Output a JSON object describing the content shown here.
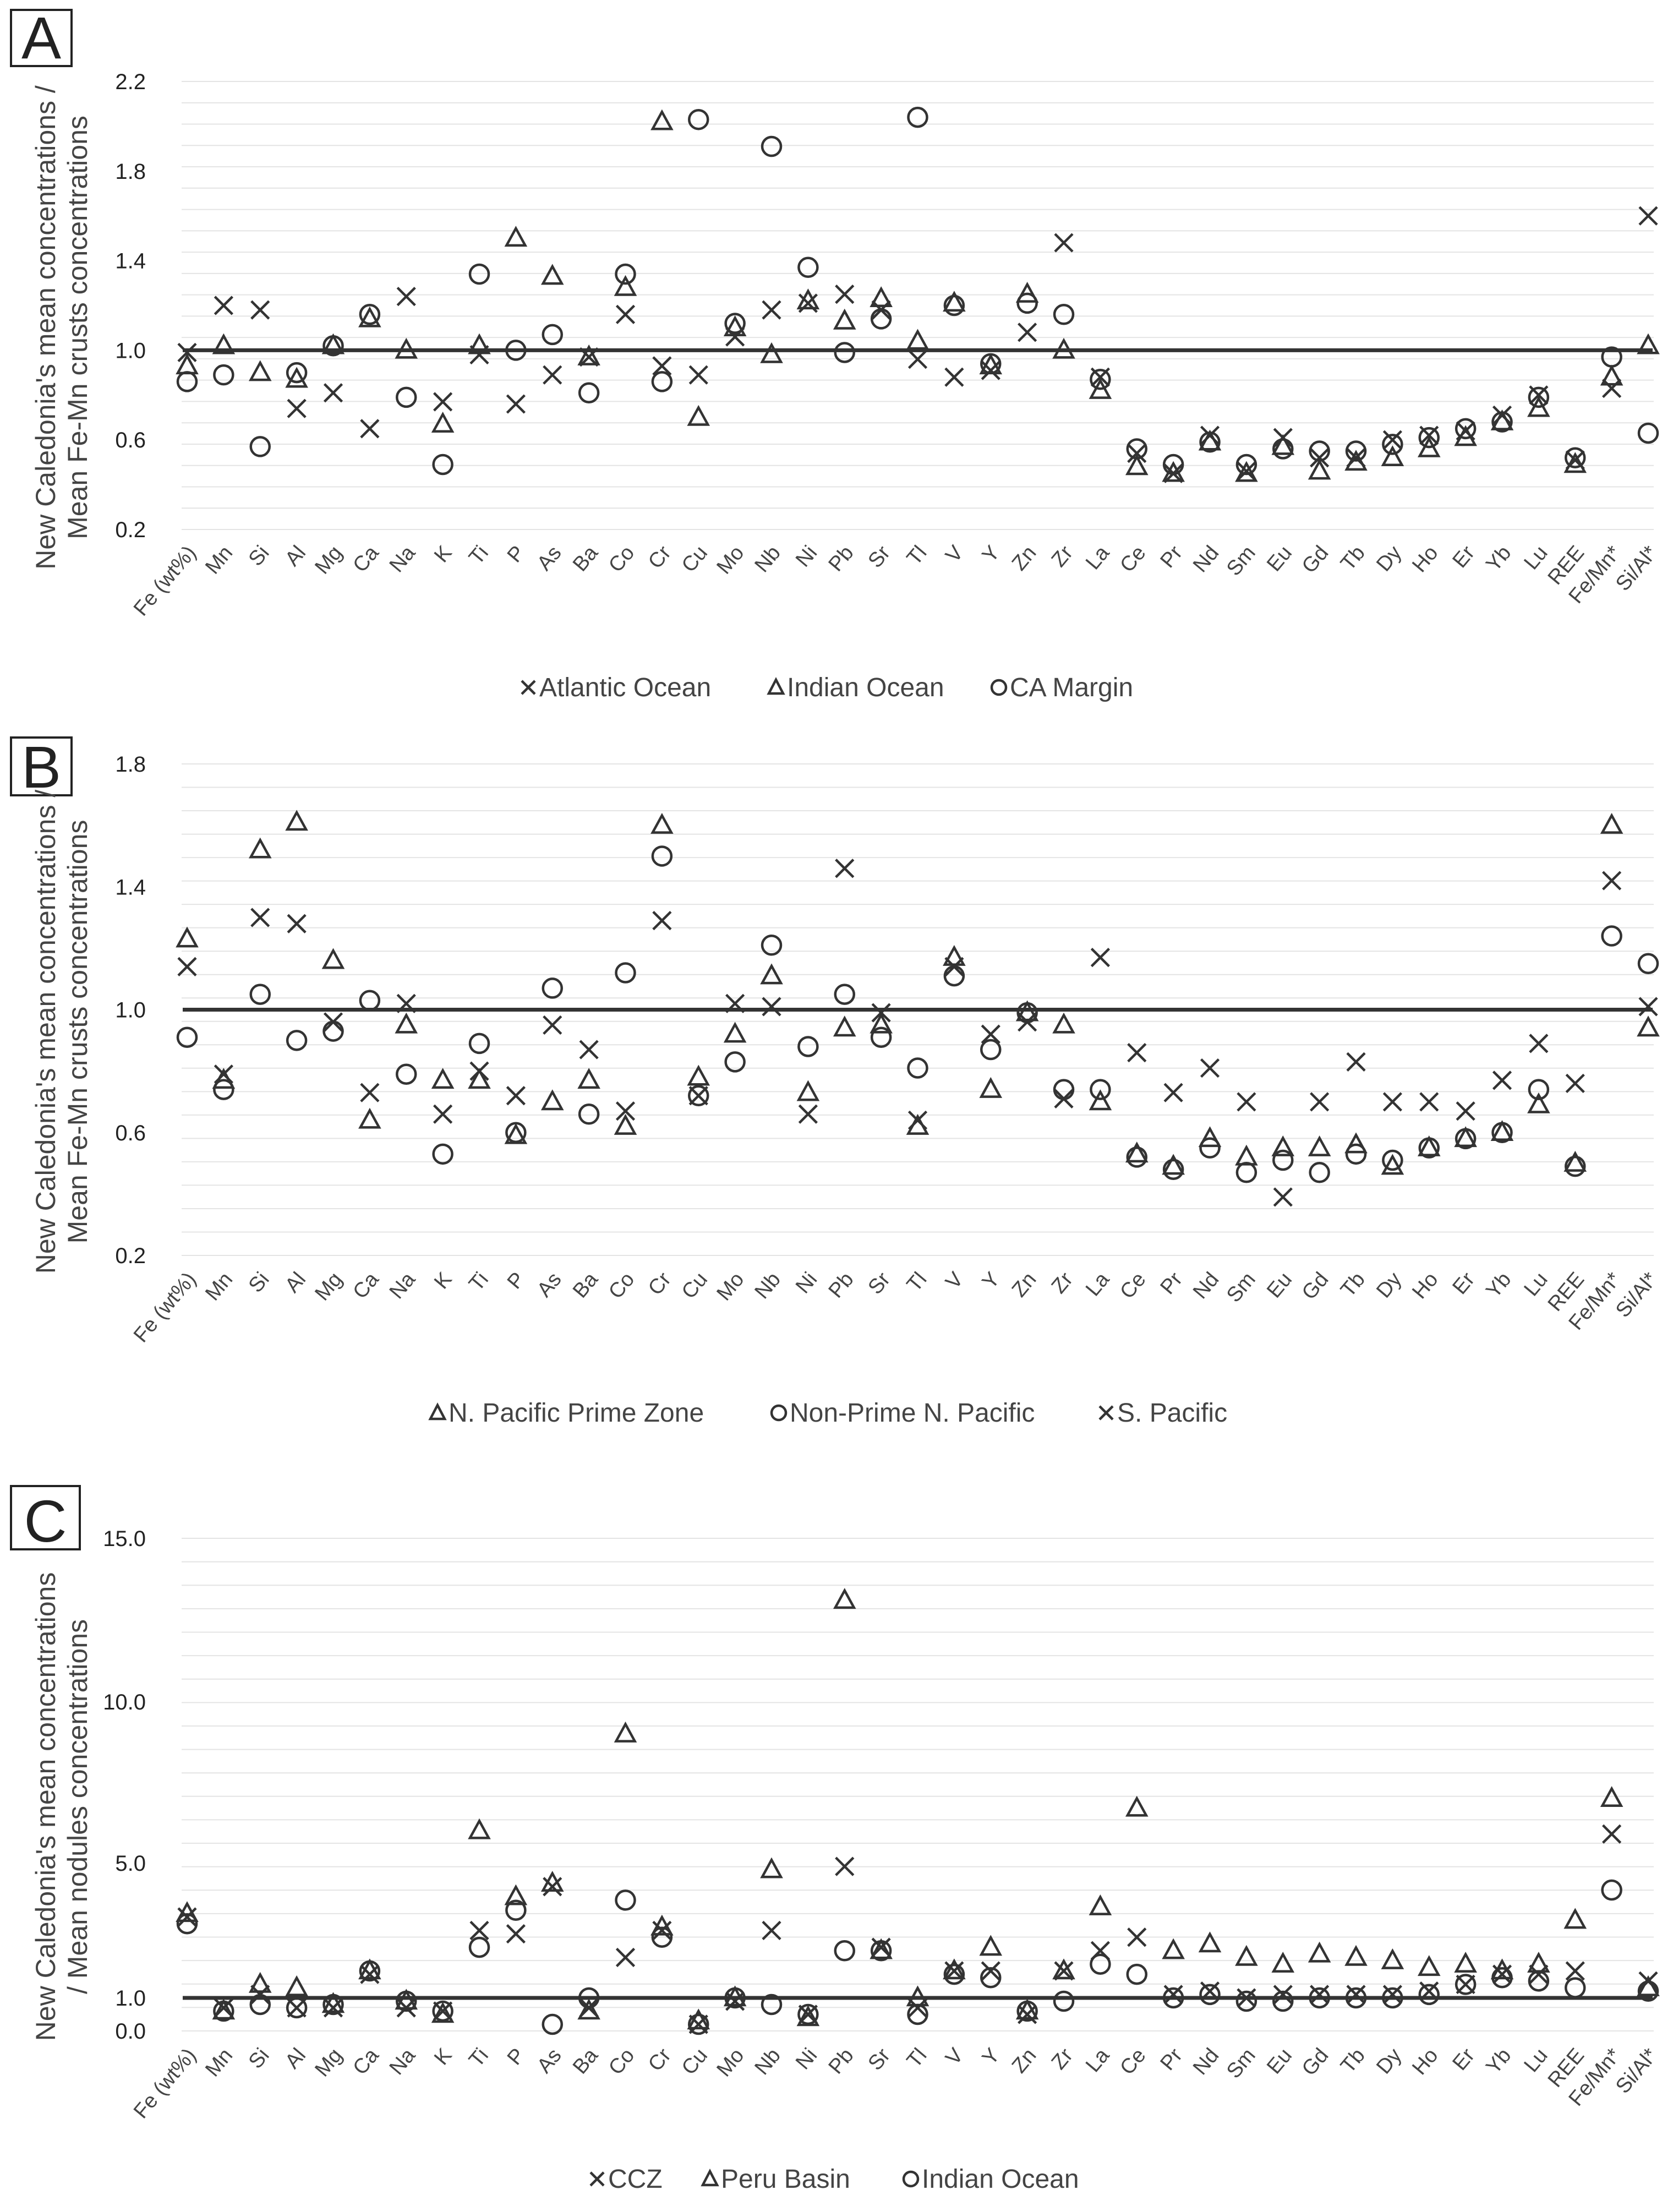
{
  "chart_data": [
    {
      "panel_label": "A",
      "type": "scatter",
      "ylabel_line1": "New Caledonia's mean concentrations /",
      "ylabel_line2": "Mean Fe-Mn crusts concentrations",
      "y_ticks": [
        "0.2",
        "0.6",
        "1.0",
        "1.4",
        "1.8",
        "2.2"
      ],
      "ylim": [
        0.2,
        2.2
      ],
      "reference_value": 1.0,
      "categories": [
        "Fe (wt%)",
        "Mn",
        "Si",
        "Al",
        "Mg",
        "Ca",
        "Na",
        "K",
        "Ti",
        "P",
        "As",
        "Ba",
        "Co",
        "Cr",
        "Cu",
        "Mo",
        "Nb",
        "Ni",
        "Pb",
        "Sr",
        "Tl",
        "V",
        "Y",
        "Zn",
        "Zr",
        "La",
        "Ce",
        "Pr",
        "Nd",
        "Sm",
        "Eu",
        "Gd",
        "Tb",
        "Dy",
        "Ho",
        "Er",
        "Yb",
        "Lu",
        "REE",
        "Fe/Mn*",
        "Si/Al*"
      ],
      "series": [
        {
          "name": "Atlantic Ocean",
          "marker": "x",
          "values": [
            0.99,
            1.2,
            1.18,
            0.74,
            0.81,
            0.65,
            1.24,
            0.77,
            0.98,
            0.76,
            0.89,
            0.97,
            1.16,
            0.93,
            0.89,
            1.06,
            1.18,
            1.21,
            1.25,
            1.18,
            0.96,
            0.88,
            0.91,
            1.08,
            1.48,
            0.88,
            0.54,
            0.45,
            0.62,
            0.46,
            0.61,
            0.52,
            0.52,
            0.6,
            0.62,
            0.64,
            0.71,
            0.8,
            0.51,
            0.83,
            1.6
          ]
        },
        {
          "name": "Indian Ocean",
          "marker": "triangle",
          "values": [
            0.93,
            1.02,
            0.9,
            0.87,
            1.02,
            1.14,
            1.0,
            0.67,
            1.02,
            1.5,
            1.33,
            0.97,
            1.28,
            2.02,
            0.7,
            1.1,
            0.98,
            1.22,
            1.13,
            1.23,
            1.04,
            1.21,
            0.93,
            1.25,
            1.0,
            0.82,
            0.48,
            0.45,
            0.59,
            0.45,
            0.57,
            0.46,
            0.5,
            0.52,
            0.56,
            0.61,
            0.68,
            0.74,
            0.49,
            0.88,
            1.02
          ]
        },
        {
          "name": "CA Margin",
          "marker": "circle",
          "values": [
            0.86,
            0.89,
            0.57,
            0.9,
            1.02,
            1.16,
            0.79,
            0.49,
            1.34,
            1.0,
            1.07,
            0.81,
            1.34,
            0.86,
            2.03,
            1.12,
            1.91,
            1.37,
            0.99,
            1.14,
            2.04,
            1.2,
            0.94,
            1.21,
            1.16,
            0.87,
            0.56,
            0.49,
            0.59,
            0.49,
            0.56,
            0.55,
            0.55,
            0.58,
            0.61,
            0.65,
            0.68,
            0.79,
            0.52,
            0.97,
            0.63
          ]
        }
      ],
      "legend": [
        "Atlantic Ocean",
        "Indian Ocean",
        "CA Margin"
      ]
    },
    {
      "panel_label": "B",
      "type": "scatter",
      "ylabel_line1": "New Caledonia's mean concentrations /",
      "ylabel_line2": "Mean Fe-Mn crusts concentrations",
      "y_ticks": [
        "0.2",
        "0.6",
        "1.0",
        "1.4",
        "1.8"
      ],
      "ylim": [
        0.2,
        1.8
      ],
      "reference_value": 1.0,
      "categories": [
        "Fe (wt%)",
        "Mn",
        "Si",
        "Al",
        "Mg",
        "Ca",
        "Na",
        "K",
        "Ti",
        "P",
        "As",
        "Ba",
        "Co",
        "Cr",
        "Cu",
        "Mo",
        "Nb",
        "Ni",
        "Pb",
        "Sr",
        "Tl",
        "V",
        "Y",
        "Zn",
        "Zr",
        "La",
        "Ce",
        "Pr",
        "Nd",
        "Sm",
        "Eu",
        "Gd",
        "Tb",
        "Dy",
        "Ho",
        "Er",
        "Yb",
        "Lu",
        "REE",
        "Fe/Mn*",
        "Si/Al*"
      ],
      "series": [
        {
          "name": "N. Pacific Prime Zone",
          "marker": "triangle",
          "values": [
            1.23,
            0.77,
            1.52,
            1.61,
            1.16,
            0.64,
            0.95,
            0.77,
            0.77,
            0.59,
            0.7,
            0.77,
            0.62,
            1.6,
            0.78,
            0.92,
            1.11,
            0.73,
            0.94,
            0.95,
            0.62,
            1.17,
            0.74,
            0.99,
            0.95,
            0.7,
            0.53,
            0.49,
            0.58,
            0.52,
            0.55,
            0.55,
            0.56,
            0.49,
            0.55,
            0.58,
            0.6,
            0.69,
            0.5,
            1.6,
            0.94
          ]
        },
        {
          "name": "Non-Prime N. Pacific",
          "marker": "circle",
          "values": [
            0.91,
            0.74,
            1.05,
            0.9,
            0.93,
            1.03,
            0.79,
            0.53,
            0.89,
            0.6,
            1.07,
            0.66,
            1.12,
            1.5,
            0.72,
            0.83,
            1.21,
            0.88,
            1.05,
            0.91,
            0.81,
            1.11,
            0.87,
            0.99,
            0.74,
            0.74,
            0.52,
            0.48,
            0.55,
            0.47,
            0.51,
            0.47,
            0.53,
            0.51,
            0.55,
            0.58,
            0.6,
            0.74,
            0.49,
            1.24,
            1.15
          ]
        },
        {
          "name": "S. Pacific",
          "marker": "x",
          "values": [
            1.14,
            0.79,
            1.3,
            1.28,
            0.96,
            0.73,
            1.02,
            0.66,
            0.8,
            0.72,
            0.95,
            0.87,
            0.67,
            1.29,
            0.72,
            1.02,
            1.01,
            0.66,
            1.46,
            0.99,
            0.64,
            1.14,
            0.92,
            0.96,
            0.71,
            1.17,
            0.86,
            0.73,
            0.81,
            0.7,
            0.39,
            0.7,
            0.83,
            0.7,
            0.7,
            0.67,
            0.77,
            0.89,
            0.76,
            1.42,
            1.01
          ]
        }
      ],
      "legend": [
        "N. Pacific Prime Zone",
        "Non-Prime N. Pacific",
        "S. Pacific"
      ]
    },
    {
      "panel_label": "C",
      "type": "scatter",
      "ylabel_line1": "New Caledonia's mean concentrations",
      "ylabel_line2": "/ Mean nodules concentrations",
      "y_ticks": [
        "0.0",
        "1.0",
        "5.0",
        "10.0",
        "15.0"
      ],
      "ylim": [
        0.0,
        15.0
      ],
      "reference_value": 1.0,
      "categories": [
        "Fe (wt%)",
        "Mn",
        "Si",
        "Al",
        "Mg",
        "Ca",
        "Na",
        "K",
        "Ti",
        "P",
        "As",
        "Ba",
        "Co",
        "Cr",
        "Cu",
        "Mo",
        "Nb",
        "Ni",
        "Pb",
        "Sr",
        "Tl",
        "V",
        "Y",
        "Zn",
        "Zr",
        "La",
        "Ce",
        "Pr",
        "Nd",
        "Sm",
        "Eu",
        "Gd",
        "Tb",
        "Dy",
        "Ho",
        "Er",
        "Yb",
        "Lu",
        "REE",
        "Fe/Mn*",
        "Si/Al*"
      ],
      "series": [
        {
          "name": "CCZ",
          "marker": "x",
          "values": [
            3.4,
            0.7,
            1.1,
            0.7,
            0.7,
            1.7,
            0.7,
            0.6,
            3.0,
            2.9,
            4.3,
            0.7,
            2.2,
            3.0,
            0.2,
            0.9,
            3.0,
            0.5,
            4.9,
            2.5,
            0.7,
            1.8,
            1.8,
            0.5,
            1.8,
            2.4,
            2.8,
            1.1,
            1.2,
            1.0,
            1.1,
            1.1,
            1.1,
            1.1,
            1.2,
            1.4,
            1.7,
            1.7,
            1.8,
            5.9,
            1.5
          ]
        },
        {
          "name": "Peru Basin",
          "marker": "triangle",
          "values": [
            3.5,
            0.6,
            1.4,
            1.3,
            0.8,
            1.8,
            0.9,
            0.5,
            6.0,
            4.0,
            4.4,
            0.6,
            9.0,
            3.1,
            0.3,
            1.0,
            4.8,
            0.4,
            13.1,
            2.4,
            1.0,
            1.8,
            2.5,
            0.6,
            1.8,
            3.7,
            6.7,
            2.4,
            2.6,
            2.2,
            2.0,
            2.3,
            2.2,
            2.1,
            1.9,
            2.0,
            1.8,
            2.0,
            3.3,
            7.0,
            1.3
          ]
        },
        {
          "name": "Indian Ocean",
          "marker": "circle",
          "values": [
            3.2,
            0.6,
            0.8,
            0.7,
            0.8,
            1.8,
            0.9,
            0.6,
            2.5,
            3.6,
            0.2,
            1.0,
            3.9,
            2.8,
            0.2,
            1.0,
            0.8,
            0.5,
            2.4,
            2.4,
            0.5,
            1.7,
            1.6,
            0.6,
            0.9,
            2.0,
            1.7,
            1.0,
            1.1,
            0.9,
            0.9,
            1.0,
            1.0,
            1.0,
            1.1,
            1.4,
            1.6,
            1.5,
            1.3,
            4.2,
            1.2
          ]
        }
      ],
      "legend": [
        "CCZ",
        "Peru Basin",
        "Indian Ocean"
      ]
    }
  ]
}
